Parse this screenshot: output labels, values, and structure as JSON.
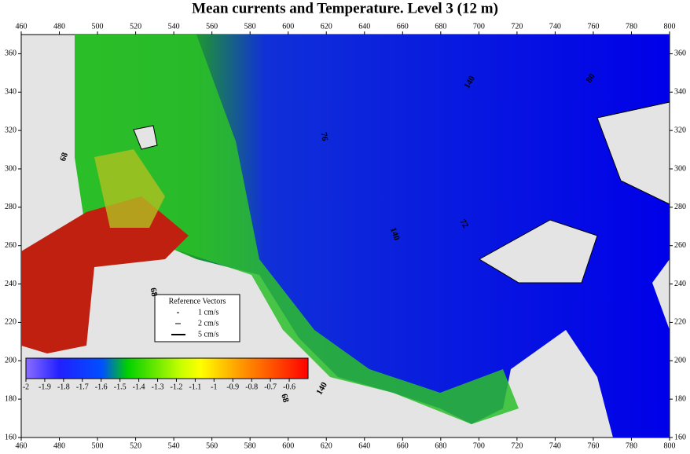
{
  "title": "Mean currents and Temperature. Level  3 (12 m)",
  "axes": {
    "xlim": [
      460,
      800
    ],
    "xticks": [
      460,
      480,
      500,
      520,
      540,
      560,
      580,
      600,
      620,
      640,
      660,
      680,
      700,
      720,
      740,
      760,
      780,
      800
    ],
    "ylim": [
      160,
      370
    ],
    "yticks": [
      160,
      180,
      200,
      220,
      240,
      260,
      280,
      300,
      320,
      340,
      360
    ]
  },
  "colorbar": {
    "lim": [
      -2,
      -0.5
    ],
    "ticks": [
      -2,
      -1.9,
      -1.8,
      -1.7,
      -1.6,
      -1.5,
      -1.4,
      -1.3,
      -1.2,
      -1.1,
      -1,
      -0.9,
      -0.8,
      -0.7,
      -0.6
    ]
  },
  "legend": {
    "title": "Reference Vectors",
    "items": [
      "1 cm/s",
      "2 cm/s",
      "5 cm/s"
    ]
  },
  "contour_labels": [
    "68",
    "76",
    "140",
    "80",
    "140",
    "72",
    "68",
    "140",
    "68"
  ]
}
